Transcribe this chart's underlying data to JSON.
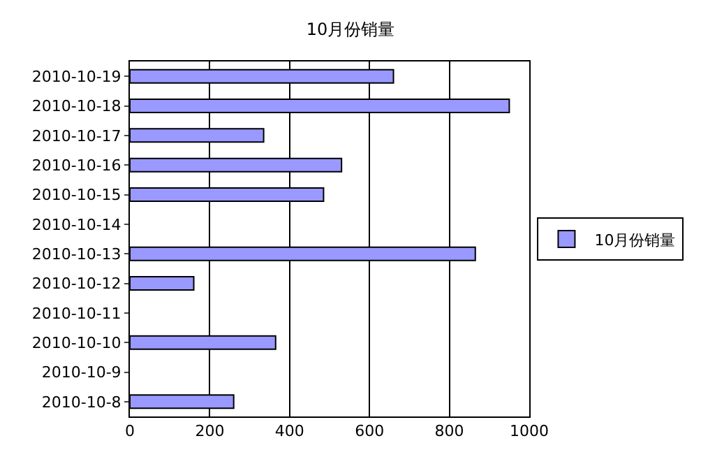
{
  "chart_data": {
    "type": "bar",
    "orientation": "horizontal",
    "title": "10月份销量",
    "categories": [
      "2010-10-19",
      "2010-10-18",
      "2010-10-17",
      "2010-10-16",
      "2010-10-15",
      "2010-10-14",
      "2010-10-13",
      "2010-10-12",
      "2010-10-11",
      "2010-10-10",
      "2010-10-9",
      "2010-10-8"
    ],
    "series": [
      {
        "name": "10月份销量",
        "color": "#9999ff",
        "values": [
          660,
          950,
          335,
          530,
          485,
          null,
          865,
          160,
          null,
          365,
          null,
          260
        ]
      }
    ],
    "xlim": [
      0,
      1000
    ],
    "xticks": [
      0,
      200,
      400,
      600,
      800,
      1000
    ],
    "grid": "x",
    "legend": "right"
  }
}
